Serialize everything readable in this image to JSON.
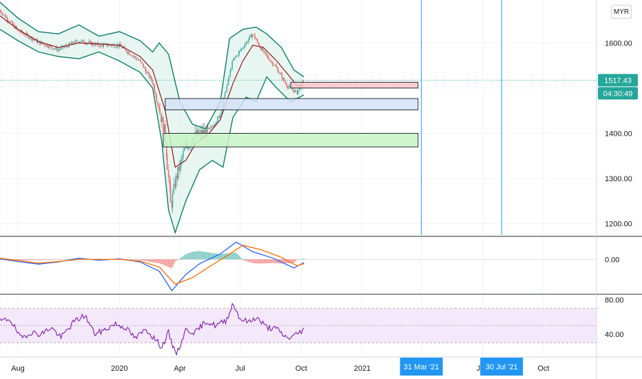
{
  "currency": "MYR",
  "price_axis": {
    "ticks": [
      "1600.00",
      "1400.00",
      "1300.00",
      "1200.00"
    ],
    "tick_values": [
      1600,
      1400,
      1300,
      1200
    ]
  },
  "last_price": {
    "value": "1517.43",
    "countdown": "04:30:49"
  },
  "macd_axis": {
    "ticks": [
      "0.00"
    ]
  },
  "rsi_axis": {
    "ticks": [
      "80.00",
      "40.00"
    ]
  },
  "time_axis": {
    "labels": [
      "Aug",
      "2020",
      "Apr",
      "Jul",
      "Oct",
      "2021",
      "J",
      "Oct"
    ]
  },
  "markers": [
    "31 Mar '21",
    "30 Jul '21"
  ],
  "colors": {
    "up": "#26a69a",
    "down": "#ef5350",
    "bands": "#0b7d6a",
    "basis": "#8b1a1a",
    "band_fill": "#d8f0ea",
    "macd": "#2962ff",
    "signal": "#ff6d00",
    "rsi": "#7b1fa2",
    "rsi_fill": "#f3e5fb",
    "marker": "#2196f3",
    "price_badge": "#26a69a"
  },
  "chart_data": [
    {
      "type": "line",
      "title": "",
      "panel": "price",
      "ylim": [
        1175,
        1695
      ],
      "x_range": [
        "2019-07-05",
        "2021-12-20"
      ],
      "series_price": {
        "dates": [
          "2019-07-05",
          "2019-08-01",
          "2019-09-01",
          "2019-10-01",
          "2019-11-01",
          "2019-12-01",
          "2020-01-01",
          "2020-02-01",
          "2020-02-20",
          "2020-03-10",
          "2020-03-19",
          "2020-03-25",
          "2020-04-10",
          "2020-04-25",
          "2020-05-15",
          "2020-06-01",
          "2020-06-20",
          "2020-07-05",
          "2020-07-20",
          "2020-08-05",
          "2020-08-25",
          "2020-09-10",
          "2020-09-25",
          "2020-10-05"
        ],
        "values": [
          1672,
          1628,
          1602,
          1585,
          1605,
          1595,
          1595,
          1560,
          1515,
          1400,
          1235,
          1290,
          1370,
          1395,
          1405,
          1440,
          1560,
          1590,
          1620,
          1580,
          1545,
          1505,
          1490,
          1517
        ]
      },
      "series_basis": {
        "dates": [
          "2019-07-05",
          "2019-08-01",
          "2019-09-01",
          "2019-10-01",
          "2019-11-01",
          "2019-12-01",
          "2020-01-01",
          "2020-02-01",
          "2020-02-20",
          "2020-03-10",
          "2020-03-25",
          "2020-04-10",
          "2020-04-25",
          "2020-05-15",
          "2020-06-01",
          "2020-06-20",
          "2020-07-05",
          "2020-07-20",
          "2020-08-05",
          "2020-08-25",
          "2020-09-10",
          "2020-09-25",
          "2020-10-05"
        ],
        "values": [
          1660,
          1630,
          1603,
          1590,
          1600,
          1598,
          1595,
          1570,
          1540,
          1450,
          1325,
          1340,
          1378,
          1400,
          1430,
          1510,
          1560,
          1595,
          1590,
          1560,
          1532,
          1505,
          1505
        ]
      },
      "series_upper": {
        "dates": [
          "2019-07-05",
          "2019-08-01",
          "2019-09-01",
          "2019-10-01",
          "2019-11-01",
          "2019-12-01",
          "2020-01-01",
          "2020-02-01",
          "2020-02-20",
          "2020-03-01",
          "2020-03-15",
          "2020-04-01",
          "2020-04-20",
          "2020-05-10",
          "2020-06-01",
          "2020-06-15",
          "2020-07-05",
          "2020-07-25",
          "2020-08-10",
          "2020-09-01",
          "2020-09-20",
          "2020-10-05"
        ],
        "values": [
          1690,
          1655,
          1625,
          1620,
          1640,
          1615,
          1625,
          1605,
          1580,
          1600,
          1575,
          1470,
          1420,
          1410,
          1470,
          1610,
          1630,
          1635,
          1620,
          1590,
          1540,
          1525
        ]
      },
      "series_lower": {
        "dates": [
          "2019-07-05",
          "2019-08-01",
          "2019-09-01",
          "2019-10-01",
          "2019-11-01",
          "2019-12-01",
          "2020-01-01",
          "2020-02-01",
          "2020-02-20",
          "2020-03-05",
          "2020-03-15",
          "2020-03-25",
          "2020-04-10",
          "2020-05-01",
          "2020-05-20",
          "2020-06-05",
          "2020-06-20",
          "2020-07-10",
          "2020-07-25",
          "2020-08-10",
          "2020-08-25",
          "2020-09-15",
          "2020-10-05"
        ],
        "values": [
          1630,
          1605,
          1580,
          1570,
          1565,
          1580,
          1560,
          1535,
          1500,
          1380,
          1230,
          1180,
          1250,
          1320,
          1340,
          1325,
          1435,
          1480,
          1470,
          1525,
          1500,
          1470,
          1485
        ]
      },
      "zones": [
        {
          "from": "2020-09-15",
          "to": "2021-03-26",
          "top": 1513,
          "bottom": 1500,
          "color": "#f8c5c8"
        },
        {
          "from": "2020-03-10",
          "to": "2021-03-26",
          "top": 1477,
          "bottom": 1452,
          "color": "#d4e2f8"
        },
        {
          "from": "2020-03-07",
          "to": "2021-03-26",
          "top": 1400,
          "bottom": 1370,
          "color": "#c8f5c5"
        }
      ],
      "vertical_markers": [
        "2021-03-31",
        "2021-07-30"
      ]
    },
    {
      "type": "line",
      "title": "",
      "panel": "macd",
      "ylim": [
        -1.55,
        1.0
      ],
      "series": [
        {
          "color": "macd",
          "dates": [
            "2019-07-05",
            "2019-08-01",
            "2019-09-01",
            "2019-10-01",
            "2019-11-01",
            "2019-12-01",
            "2020-01-01",
            "2020-02-01",
            "2020-03-01",
            "2020-03-20",
            "2020-04-10",
            "2020-05-01",
            "2020-06-01",
            "2020-06-25",
            "2020-07-20",
            "2020-08-20",
            "2020-09-20",
            "2020-10-05"
          ],
          "values": [
            0.02,
            -0.1,
            -0.22,
            -0.12,
            0.05,
            -0.04,
            0.02,
            -0.12,
            -0.55,
            -1.45,
            -0.7,
            -0.2,
            0.25,
            0.8,
            0.35,
            0.05,
            -0.4,
            -0.15
          ]
        },
        {
          "color": "signal",
          "dates": [
            "2019-07-05",
            "2019-08-01",
            "2019-09-01",
            "2019-10-01",
            "2019-11-01",
            "2019-12-01",
            "2020-01-01",
            "2020-02-01",
            "2020-03-01",
            "2020-03-25",
            "2020-04-20",
            "2020-05-15",
            "2020-06-10",
            "2020-07-05",
            "2020-08-01",
            "2020-08-30",
            "2020-09-25",
            "2020-10-05"
          ],
          "values": [
            0.05,
            -0.05,
            -0.18,
            -0.1,
            0.0,
            0.0,
            0.0,
            -0.08,
            -0.35,
            -1.15,
            -0.85,
            -0.35,
            0.15,
            0.65,
            0.45,
            0.12,
            -0.3,
            -0.2
          ]
        }
      ]
    },
    {
      "type": "line",
      "title": "",
      "panel": "rsi",
      "ylim": [
        15,
        85
      ],
      "band": [
        30,
        70
      ],
      "midline": 50,
      "series": [
        {
          "color": "rsi",
          "dates": [
            "2019-07-05",
            "2019-07-20",
            "2019-08-05",
            "2019-08-20",
            "2019-09-05",
            "2019-09-20",
            "2019-10-05",
            "2019-10-25",
            "2019-11-10",
            "2019-11-25",
            "2019-12-10",
            "2019-12-25",
            "2020-01-10",
            "2020-01-25",
            "2020-02-10",
            "2020-02-25",
            "2020-03-05",
            "2020-03-15",
            "2020-03-20",
            "2020-03-28",
            "2020-04-10",
            "2020-04-25",
            "2020-05-10",
            "2020-05-25",
            "2020-06-10",
            "2020-06-20",
            "2020-07-01",
            "2020-07-15",
            "2020-07-25",
            "2020-08-10",
            "2020-08-25",
            "2020-09-10",
            "2020-09-20",
            "2020-10-05"
          ],
          "values": [
            55,
            58,
            35,
            42,
            40,
            48,
            36,
            55,
            62,
            40,
            45,
            52,
            48,
            35,
            46,
            33,
            25,
            42,
            28,
            18,
            45,
            42,
            55,
            50,
            56,
            76,
            58,
            54,
            60,
            48,
            46,
            35,
            38,
            46
          ]
        }
      ]
    }
  ]
}
